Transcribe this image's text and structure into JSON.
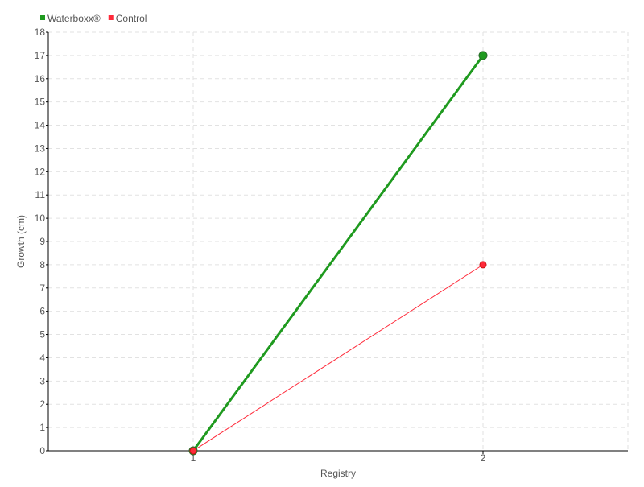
{
  "chart_data": {
    "type": "line",
    "title": "",
    "xlabel": "Registry",
    "ylabel": "Growth (cm)",
    "categories": [
      "1",
      "2"
    ],
    "x": [
      1,
      2
    ],
    "xlim": [
      0.5,
      2.5
    ],
    "ylim": [
      0,
      18
    ],
    "yticks": [
      0,
      1,
      2,
      3,
      4,
      5,
      6,
      7,
      8,
      9,
      10,
      11,
      12,
      13,
      14,
      15,
      16,
      17,
      18
    ],
    "grid": true,
    "legend_position": "top-left",
    "series": [
      {
        "name": "Waterboxx®",
        "values": [
          0,
          17
        ],
        "color": "#1f9a1f"
      },
      {
        "name": "Control",
        "values": [
          0,
          8
        ],
        "color": "#ff2a3a"
      }
    ]
  }
}
